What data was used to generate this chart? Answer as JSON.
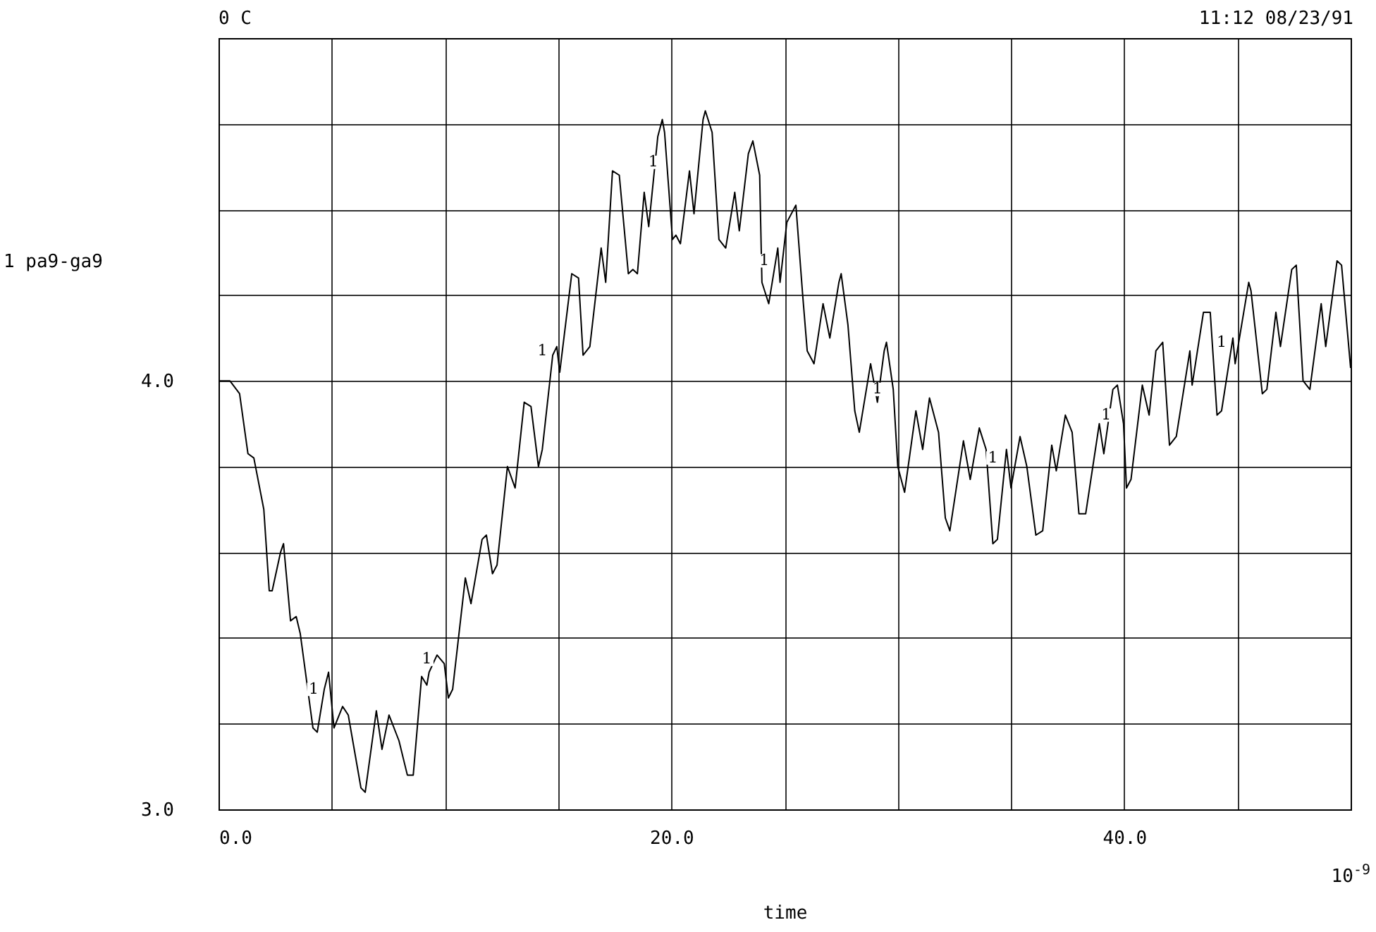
{
  "chart_data": {
    "type": "line",
    "xlabel": "time",
    "ylabel": "1 pa9-ga9",
    "x": [
      0,
      0.5,
      0.93,
      1.3,
      1.56,
      2.0,
      2.24,
      2.37,
      2.74,
      2.87,
      3.18,
      3.43,
      3.61,
      4.17,
      4.36,
      4.67,
      4.86,
      5.1,
      5.48,
      5.73,
      6.29,
      6.48,
      6.97,
      7.22,
      7.53,
      7.97,
      8.34,
      8.6,
      8.97,
      9.2,
      9.3,
      9.65,
      9.97,
      10.15,
      10.34,
      10.9,
      11.15,
      11.64,
      11.83,
      12.1,
      12.3,
      12.76,
      13.1,
      13.5,
      13.8,
      14.13,
      14.3,
      14.76,
      14.94,
      15.07,
      15.6,
      15.9,
      16.1,
      16.4,
      16.9,
      17.1,
      17.4,
      17.7,
      18.1,
      18.3,
      18.5,
      18.8,
      19.0,
      19.4,
      19.6,
      19.7,
      20.05,
      20.2,
      20.4,
      20.8,
      21.0,
      21.4,
      21.5,
      21.8,
      22.1,
      22.4,
      22.8,
      23.0,
      23.4,
      23.6,
      23.9,
      24.0,
      24.3,
      24.7,
      24.8,
      25.1,
      25.5,
      25.8,
      26.0,
      26.3,
      26.7,
      27.0,
      27.4,
      27.5,
      27.8,
      28.1,
      28.3,
      28.8,
      29.1,
      29.4,
      29.5,
      29.8,
      30.0,
      30.3,
      30.8,
      31.1,
      31.4,
      31.8,
      32.1,
      32.3,
      32.9,
      33.2,
      33.6,
      33.9,
      34.2,
      34.4,
      34.8,
      35.0,
      35.4,
      35.7,
      36.1,
      36.4,
      36.8,
      37.0,
      37.4,
      37.7,
      38.0,
      38.3,
      38.9,
      39.1,
      39.5,
      39.7,
      39.97,
      40.1,
      40.3,
      40.8,
      41.1,
      41.4,
      41.7,
      42.0,
      42.3,
      42.9,
      43.0,
      43.5,
      43.8,
      44.1,
      44.3,
      44.8,
      44.9,
      45.5,
      45.6,
      46.1,
      46.3,
      46.7,
      46.9,
      47.4,
      47.6,
      47.9,
      48.2,
      48.7,
      48.9,
      49.4,
      49.6,
      50.0
    ],
    "series": [
      {
        "color": "#000000",
        "values": [
          4.0,
          4.0,
          3.97,
          3.83,
          3.82,
          3.7,
          3.51,
          3.51,
          3.6,
          3.62,
          3.44,
          3.45,
          3.41,
          3.19,
          3.18,
          3.28,
          3.32,
          3.19,
          3.24,
          3.22,
          3.05,
          3.04,
          3.23,
          3.14,
          3.22,
          3.16,
          3.08,
          3.08,
          3.31,
          3.29,
          3.32,
          3.36,
          3.34,
          3.26,
          3.28,
          3.54,
          3.48,
          3.63,
          3.64,
          3.55,
          3.57,
          3.8,
          3.75,
          3.95,
          3.94,
          3.8,
          3.84,
          4.06,
          4.08,
          4.02,
          4.25,
          4.24,
          4.06,
          4.08,
          4.31,
          4.23,
          4.49,
          4.48,
          4.25,
          4.26,
          4.25,
          4.44,
          4.36,
          4.57,
          4.61,
          4.58,
          4.33,
          4.34,
          4.32,
          4.49,
          4.39,
          4.61,
          4.63,
          4.58,
          4.33,
          4.31,
          4.44,
          4.35,
          4.53,
          4.56,
          4.48,
          4.23,
          4.18,
          4.31,
          4.23,
          4.37,
          4.41,
          4.2,
          4.07,
          4.04,
          4.18,
          4.1,
          4.23,
          4.25,
          4.13,
          3.93,
          3.88,
          4.04,
          3.95,
          4.07,
          4.09,
          3.98,
          3.8,
          3.74,
          3.93,
          3.84,
          3.96,
          3.88,
          3.68,
          3.65,
          3.86,
          3.77,
          3.89,
          3.84,
          3.62,
          3.63,
          3.84,
          3.75,
          3.87,
          3.8,
          3.64,
          3.65,
          3.85,
          3.79,
          3.92,
          3.88,
          3.69,
          3.69,
          3.9,
          3.83,
          3.98,
          3.99,
          3.9,
          3.75,
          3.77,
          3.99,
          3.92,
          4.07,
          4.09,
          3.85,
          3.87,
          4.07,
          3.99,
          4.16,
          4.16,
          3.92,
          3.93,
          4.1,
          4.04,
          4.23,
          4.21,
          3.97,
          3.98,
          4.16,
          4.08,
          4.26,
          4.27,
          4.0,
          3.98,
          4.18,
          4.08,
          4.28,
          4.27,
          4.03
        ]
      }
    ],
    "xlim": [
      0,
      50
    ],
    "xticks": [
      {
        "value": 0,
        "label": "0.0"
      },
      {
        "value": 5,
        "label": null
      },
      {
        "value": 10,
        "label": null
      },
      {
        "value": 15,
        "label": null
      },
      {
        "value": 20,
        "label": "20.0"
      },
      {
        "value": 25,
        "label": null
      },
      {
        "value": 30,
        "label": null
      },
      {
        "value": 35,
        "label": null
      },
      {
        "value": 40,
        "label": "40.0"
      },
      {
        "value": 45,
        "label": null
      },
      {
        "value": 50,
        "label": null
      }
    ],
    "ylim": [
      3.0,
      4.8
    ],
    "yticks": [
      {
        "value": 3.0,
        "label": "3.0"
      },
      {
        "value": 3.2,
        "label": null
      },
      {
        "value": 3.4,
        "label": null
      },
      {
        "value": 3.6,
        "label": null
      },
      {
        "value": 3.8,
        "label": null
      },
      {
        "value": 4.0,
        "label": "4.0"
      },
      {
        "value": 4.2,
        "label": null
      },
      {
        "value": 4.4,
        "label": null
      },
      {
        "value": 4.6,
        "label": null
      },
      {
        "value": 4.8,
        "label": null
      }
    ],
    "grid": true,
    "annotations": [
      "0 C",
      "11:12  08/23/91",
      "10$^{-9}$",
      {
        "text": "1",
        "x": 4.7,
        "y": 3.28
      },
      {
        "text": "1",
        "x": 9.7,
        "y": 3.35
      },
      {
        "text": "1",
        "x": 14.8,
        "y": 4.07
      },
      {
        "text": "1",
        "x": 19.7,
        "y": 4.51
      },
      {
        "text": "1",
        "x": 24.6,
        "y": 4.28
      },
      {
        "text": "1",
        "x": 29.6,
        "y": 3.98
      },
      {
        "text": "1",
        "x": 34.7,
        "y": 3.82
      },
      {
        "text": "1",
        "x": 39.7,
        "y": 3.92
      },
      {
        "text": "1",
        "x": 44.8,
        "y": 4.09
      }
    ]
  }
}
